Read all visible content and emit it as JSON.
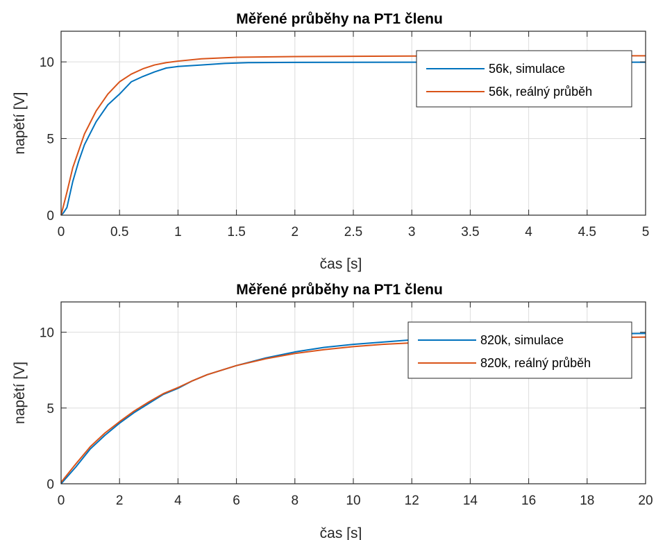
{
  "chart_data": [
    {
      "type": "line",
      "title": "Měřené průběhy na PT1 členu",
      "xlabel": "čas [s]",
      "ylabel": "napětí [V]",
      "xlim": [
        0,
        5
      ],
      "ylim": [
        0,
        12
      ],
      "xticks": [
        0,
        0.5,
        1,
        1.5,
        2,
        2.5,
        3,
        3.5,
        4,
        4.5,
        5
      ],
      "xtick_labels": [
        "0",
        "0.5",
        "1",
        "1.5",
        "2",
        "2.5",
        "3",
        "3.5",
        "4",
        "4.5",
        "5"
      ],
      "yticks": [
        0,
        5,
        10
      ],
      "ytick_labels": [
        "0",
        "5",
        "10"
      ],
      "grid": true,
      "legend_position": "top-right",
      "series": [
        {
          "name": "56k, simulace",
          "color": "#0072BD",
          "x": [
            0,
            0.02,
            0.05,
            0.1,
            0.15,
            0.2,
            0.3,
            0.4,
            0.5,
            0.6,
            0.7,
            0.8,
            0.9,
            1.0,
            1.2,
            1.4,
            1.6,
            2.0,
            3.0,
            4.0,
            5.0
          ],
          "y": [
            0,
            0.15,
            0.5,
            2.2,
            3.5,
            4.6,
            6.1,
            7.2,
            7.9,
            8.7,
            9.05,
            9.35,
            9.6,
            9.7,
            9.8,
            9.9,
            9.95,
            9.97,
            9.98,
            9.98,
            9.98
          ]
        },
        {
          "name": "56k, reálný průběh",
          "color": "#D95319",
          "x": [
            0,
            0.02,
            0.05,
            0.1,
            0.15,
            0.2,
            0.3,
            0.4,
            0.5,
            0.6,
            0.7,
            0.8,
            0.9,
            1.0,
            1.2,
            1.5,
            2.0,
            3.0,
            4.0,
            5.0
          ],
          "y": [
            0,
            0.6,
            1.5,
            3.1,
            4.2,
            5.3,
            6.8,
            7.9,
            8.7,
            9.2,
            9.55,
            9.8,
            9.95,
            10.05,
            10.2,
            10.3,
            10.35,
            10.38,
            10.4,
            10.4
          ]
        }
      ]
    },
    {
      "type": "line",
      "title": "Měřené průběhy na PT1 členu",
      "xlabel": "čas [s]",
      "ylabel": "napětí [V]",
      "xlim": [
        0,
        20
      ],
      "ylim": [
        0,
        12
      ],
      "xticks": [
        0,
        2,
        4,
        6,
        8,
        10,
        12,
        14,
        16,
        18,
        20
      ],
      "xtick_labels": [
        "0",
        "2",
        "4",
        "6",
        "8",
        "10",
        "12",
        "14",
        "16",
        "18",
        "20"
      ],
      "yticks": [
        0,
        5,
        10
      ],
      "ytick_labels": [
        "0",
        "5",
        "10"
      ],
      "grid": true,
      "legend_position": "top-right",
      "series": [
        {
          "name": "820k, simulace",
          "color": "#0072BD",
          "x": [
            0,
            0.5,
            1,
            1.5,
            2,
            2.5,
            3,
            3.5,
            4,
            4.5,
            5,
            6,
            7,
            8,
            9,
            10,
            11,
            12,
            13,
            14,
            15,
            16,
            17,
            18,
            19,
            20
          ],
          "y": [
            0,
            1.1,
            2.3,
            3.2,
            4.0,
            4.7,
            5.3,
            5.9,
            6.3,
            6.8,
            7.2,
            7.8,
            8.3,
            8.7,
            9.0,
            9.2,
            9.35,
            9.5,
            9.6,
            9.7,
            9.75,
            9.8,
            9.85,
            9.88,
            9.9,
            9.92
          ]
        },
        {
          "name": "820k, reálný průběh",
          "color": "#D95319",
          "x": [
            0,
            0.5,
            1,
            1.5,
            2,
            2.5,
            3,
            3.5,
            4,
            4.5,
            5,
            6,
            7,
            8,
            9,
            10,
            11,
            12,
            13,
            14,
            15,
            16,
            17,
            18,
            19,
            20
          ],
          "y": [
            0.1,
            1.3,
            2.45,
            3.35,
            4.1,
            4.8,
            5.4,
            5.95,
            6.35,
            6.8,
            7.2,
            7.8,
            8.25,
            8.6,
            8.85,
            9.05,
            9.2,
            9.3,
            9.4,
            9.45,
            9.5,
            9.55,
            9.6,
            9.63,
            9.66,
            9.68
          ]
        }
      ]
    }
  ]
}
